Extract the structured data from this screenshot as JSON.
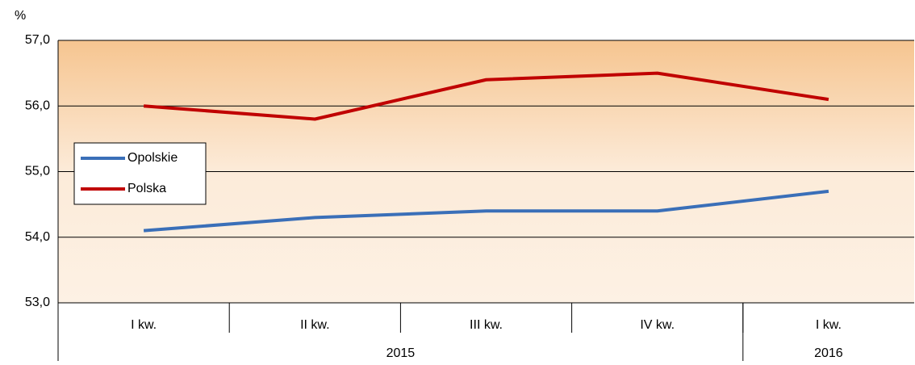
{
  "chart_data": {
    "type": "line",
    "y_unit": "%",
    "categories": [
      "I kw.",
      "II kw.",
      "III kw.",
      "IV kw.",
      "I kw."
    ],
    "groups": [
      {
        "label": "2015",
        "span": 4
      },
      {
        "label": "2016",
        "span": 1
      }
    ],
    "series": [
      {
        "name": "Opolskie",
        "color": "#3a6fb8",
        "values": [
          54.1,
          54.3,
          54.4,
          54.4,
          54.7
        ]
      },
      {
        "name": "Polska",
        "color": "#c00000",
        "values": [
          56.0,
          55.8,
          56.4,
          56.5,
          56.1
        ]
      }
    ],
    "ylim": [
      53,
      57
    ],
    "yticks": [
      {
        "value": 53,
        "label": "53,0"
      },
      {
        "value": 54,
        "label": "54,0"
      },
      {
        "value": 55,
        "label": "55,0"
      },
      {
        "value": 56,
        "label": "56,0"
      },
      {
        "value": 57,
        "label": "57,0"
      }
    ],
    "grid": true,
    "legend": "left"
  }
}
